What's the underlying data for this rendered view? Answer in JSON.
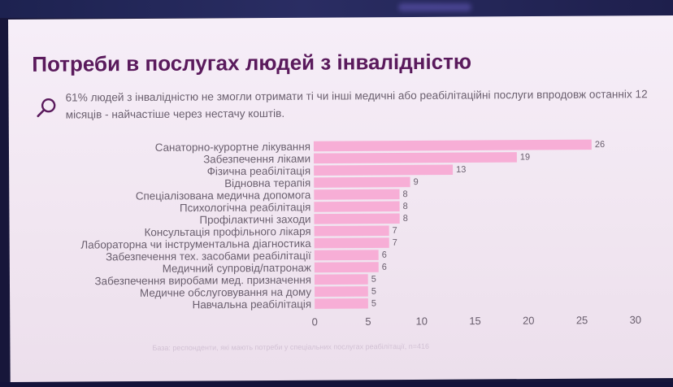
{
  "slide": {
    "title": "Потреби в послугах людей з інвалідністю",
    "description": "61% людей з інвалідністю не змогли отримати ті чи інші медичні або реабілітаційні послуги впродовж останніх 12 місяців - найчастіше через нестачу коштів.",
    "footnote": "База: респонденти, які мають потреби у спеціальних послугах реабілітації, n=416",
    "search_icon": "search-icon"
  },
  "colors": {
    "bar": "#f7aed6",
    "title": "#5a1a5c",
    "text": "#6a5f6e",
    "background": "#f4ebf5"
  },
  "chart_data": {
    "type": "bar",
    "orientation": "horizontal",
    "categories": [
      "Санаторно-курортне лікування",
      "Забезпечення ліками",
      "Фізична реабілітація",
      "Відновна терапія",
      "Спеціалізована медична допомога",
      "Психологічна реабілітація",
      "Профілактичні заходи",
      "Консультація профільного лікаря",
      "Лабораторна чи інструментальна діагностика",
      "Забезпечення тех. засобами реабілітації",
      "Медичний супровід/патронаж",
      "Забезпечення виробами мед. призначення",
      "Медичне обслуговування на дому",
      "Навчальна реабілітація"
    ],
    "values": [
      26,
      19,
      13,
      9,
      8,
      8,
      8,
      7,
      7,
      6,
      6,
      5,
      5,
      5
    ],
    "xlim": [
      0,
      30
    ],
    "xticks": [
      0,
      5,
      10,
      15,
      20,
      25,
      30
    ],
    "grid": false,
    "legend": "none"
  }
}
